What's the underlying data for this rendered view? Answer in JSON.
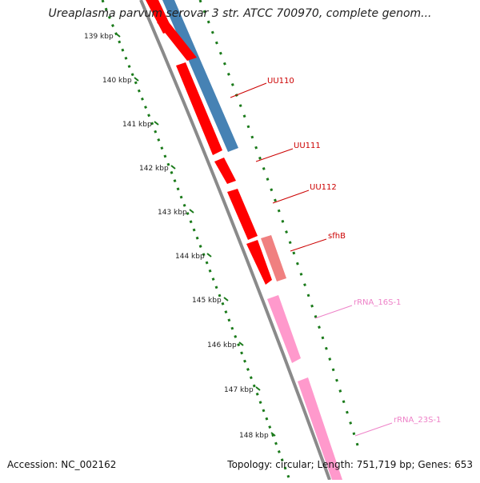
{
  "title": "Ureaplasma parvum serovar 3 str. ATCC 700970, complete genom...",
  "footer": {
    "accession": "Accession: NC_002162",
    "topology": "Topology: circular; Length: 751,719 bp; Genes: 653"
  },
  "colors": {
    "backbone": "#8a8a8a",
    "tick_dots": "#1a7a1a",
    "cds_red": "#ff0000",
    "cds_blue": "#4682b4",
    "pseudo_salmon": "#f08080",
    "rrna_pink": "#ff99cc",
    "label_red": "#cc0000",
    "label_pink": "#ee82c8"
  },
  "scale": {
    "unit": "kbp",
    "ticks": [
      "139 kbp",
      "140 kbp",
      "141 kbp",
      "142 kbp",
      "143 kbp",
      "144 kbp",
      "145 kbp",
      "146 kbp",
      "147 kbp",
      "148 kbp"
    ]
  },
  "features": [
    {
      "name": "UU110",
      "type": "CDS",
      "color": "#ff0000",
      "label_color": "#cc0000"
    },
    {
      "name": "UU111",
      "type": "CDS",
      "color": "#ff0000",
      "label_color": "#cc0000"
    },
    {
      "name": "UU112",
      "type": "CDS",
      "color": "#ff0000",
      "label_color": "#cc0000"
    },
    {
      "name": "sfhB",
      "type": "CDS",
      "color": "#f08080",
      "label_color": "#cc0000"
    },
    {
      "name": "rRNA_16S-1",
      "type": "rRNA",
      "color": "#ff99cc",
      "label_color": "#ee82c8"
    },
    {
      "name": "rRNA_23S-1",
      "type": "rRNA",
      "color": "#ff99cc",
      "label_color": "#ee82c8"
    }
  ]
}
